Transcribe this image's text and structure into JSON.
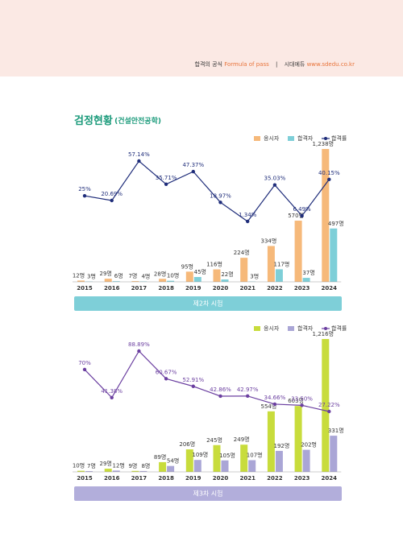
{
  "header": {
    "brand": "합격의 공식",
    "slogan": "Formula of pass",
    "separator": "|",
    "publisher": "시대에듀",
    "url": "www.sdedu.co.kr"
  },
  "heading": {
    "main": "검정현황",
    "sub": "(건설안전공학)"
  },
  "chart_data": [
    {
      "type": "bar",
      "title": "제2차 시험",
      "title_color": "#7ecfd8",
      "categories": [
        "2015",
        "2016",
        "2017",
        "2018",
        "2019",
        "2020",
        "2021",
        "2022",
        "2023",
        "2024"
      ],
      "series": [
        {
          "name": "응시자",
          "color": "#f6b97a",
          "values": [
            12,
            29,
            7,
            28,
            95,
            116,
            224,
            334,
            570,
            1238
          ],
          "value_labels": [
            "12명",
            "29명",
            "7명",
            "28명",
            "95명",
            "116명",
            "224명",
            "334명",
            "570명",
            "1,238명"
          ]
        },
        {
          "name": "합격자",
          "color": "#7ecfd8",
          "values": [
            3,
            6,
            4,
            10,
            45,
            22,
            3,
            117,
            37,
            497
          ],
          "value_labels": [
            "3명",
            "6명",
            "4명",
            "10명",
            "45명",
            "22명",
            "3명",
            "117명",
            "37명",
            "497명"
          ]
        },
        {
          "name": "합격률",
          "color": "#1f2d7a",
          "type": "line",
          "values": [
            25,
            20.69,
            57.14,
            35.71,
            47.37,
            18.97,
            1.34,
            35.03,
            6.49,
            40.15
          ],
          "value_labels": [
            "25%",
            "20.69%",
            "57.14%",
            "35.71%",
            "47.37%",
            "18.97%",
            "1.34%",
            "35.03%",
            "6.49%",
            "40.15%"
          ]
        }
      ]
    },
    {
      "type": "bar",
      "title": "제3차 시험",
      "title_color": "#b2aedb",
      "categories": [
        "2015",
        "2016",
        "2017",
        "2018",
        "2019",
        "2020",
        "2021",
        "2022",
        "2023",
        "2024"
      ],
      "series": [
        {
          "name": "응시자",
          "color": "#c8dc3c",
          "values": [
            10,
            29,
            9,
            89,
            206,
            245,
            249,
            554,
            603,
            1216
          ],
          "value_labels": [
            "10명",
            "29명",
            "9명",
            "89명",
            "206명",
            "245명",
            "249명",
            "554명",
            "603명",
            "1,216명"
          ]
        },
        {
          "name": "합격자",
          "color": "#aaa6d6",
          "values": [
            7,
            12,
            8,
            54,
            109,
            105,
            107,
            192,
            202,
            331
          ],
          "value_labels": [
            "7명",
            "12명",
            "8명",
            "54명",
            "109명",
            "105명",
            "107명",
            "192명",
            "202명",
            "331명"
          ]
        },
        {
          "name": "합격률",
          "color": "#6b3fa0",
          "type": "line",
          "values": [
            70,
            41.38,
            88.89,
            60.67,
            52.91,
            42.86,
            42.97,
            34.66,
            33.5,
            27.22
          ],
          "value_labels": [
            "70%",
            "41.38%",
            "88.89%",
            "60.67%",
            "52.91%",
            "42.86%",
            "42.97%",
            "34.66%",
            "33.50%",
            "27.22%"
          ]
        }
      ]
    }
  ]
}
